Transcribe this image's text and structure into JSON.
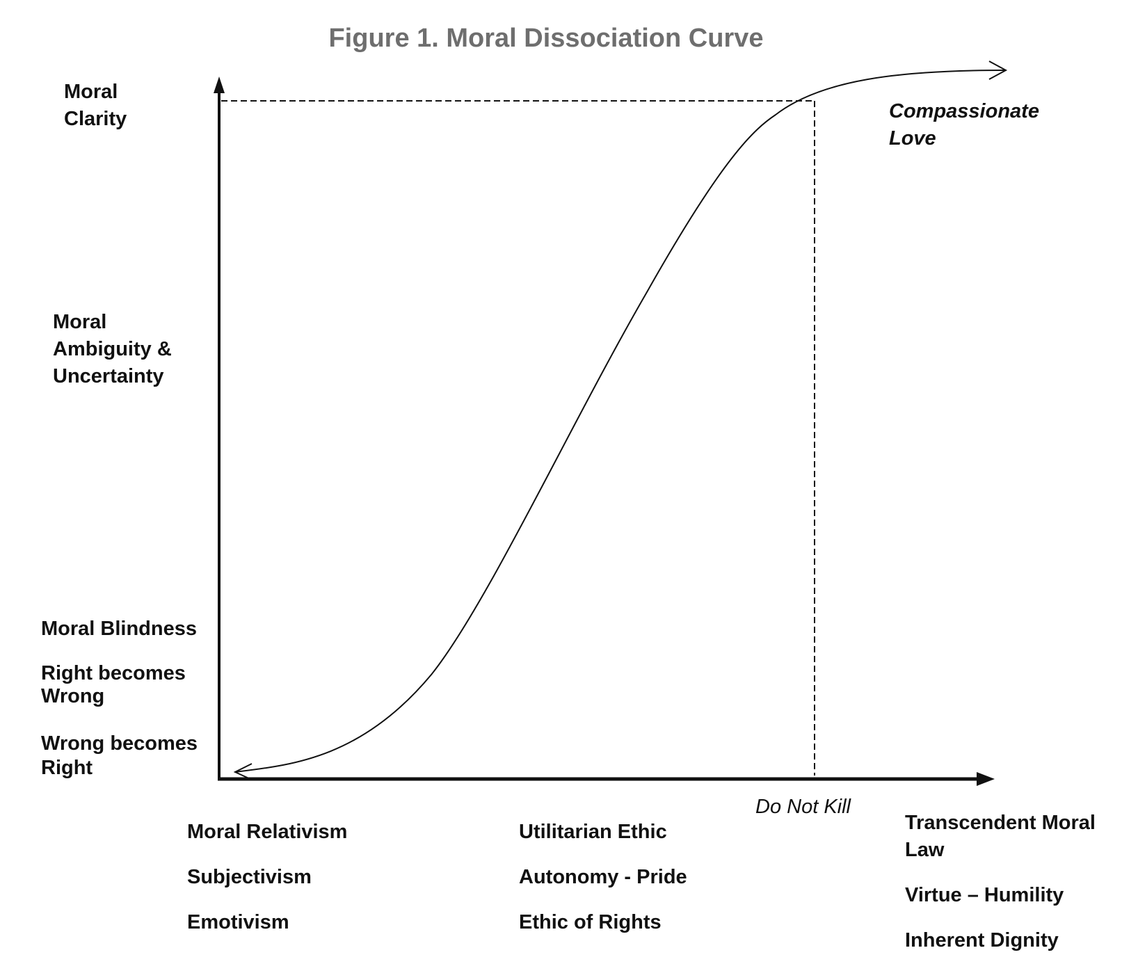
{
  "title": "Figure 1. Moral Dissociation Curve",
  "y_labels": {
    "clarity_line1": "Moral",
    "clarity_line2": "Clarity",
    "ambiguity_line1": "Moral",
    "ambiguity_line2": "Ambiguity &",
    "ambiguity_line3": "Uncertainty",
    "blindness": "Moral Blindness",
    "right_wrong_line1": "Right becomes",
    "right_wrong_line2": "Wrong",
    "wrong_right_line1": "Wrong becomes",
    "wrong_right_line2": "Right"
  },
  "curve_label": {
    "line1": "Compassionate",
    "line2": "Love"
  },
  "marker_label": "Do Not Kill",
  "x_groups": {
    "left": [
      "Moral Relativism",
      "Subjectivism",
      "Emotivism"
    ],
    "middle": [
      "Utilitarian Ethic",
      "Autonomy - Pride",
      "Ethic of Rights"
    ],
    "right_line1": "Transcendent Moral",
    "right_line2": "Law",
    "right_items": [
      "Virtue – Humility",
      "Inherent Dignity"
    ]
  },
  "colors": {
    "title": "#6e6e6e",
    "ink": "#111111"
  }
}
